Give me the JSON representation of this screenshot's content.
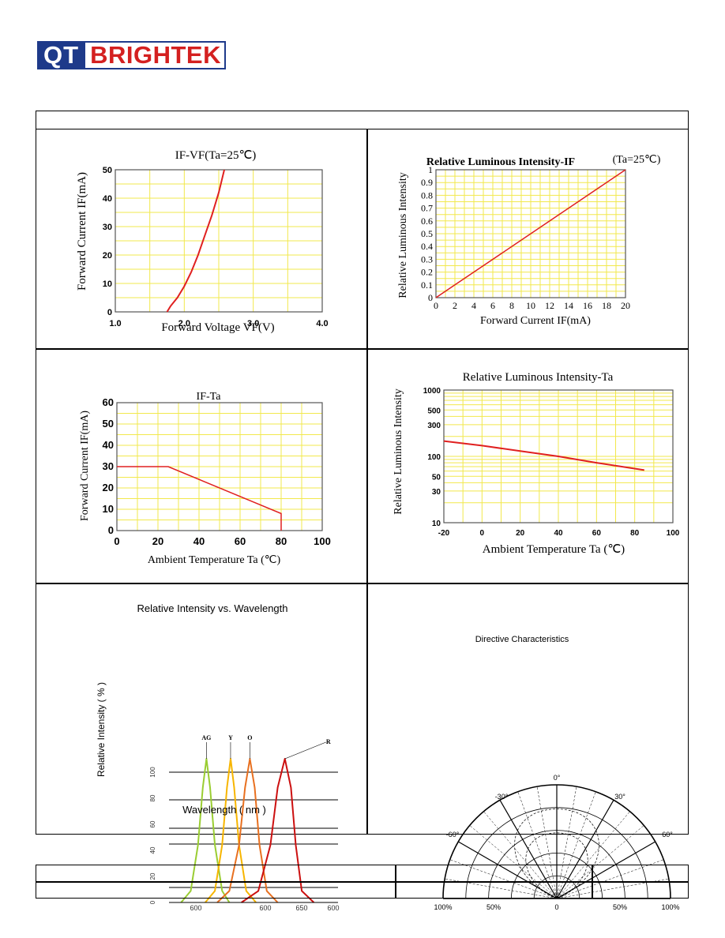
{
  "logo": {
    "part1": "QT",
    "part2": "BRIGHTEK"
  },
  "chart_data": [
    {
      "type": "line",
      "title": "IF-VF(Ta=25℃)",
      "xlabel": "Forward Voltage VF(V)",
      "ylabel": "Forward Current IF(mA)",
      "xlim": [
        1.0,
        4.0
      ],
      "ylim": [
        0,
        50
      ],
      "xticks": [
        "1.0",
        "2.0",
        "3.0",
        "4.0"
      ],
      "yticks": [
        "0",
        "10",
        "20",
        "30",
        "40",
        "50"
      ],
      "series": [
        {
          "x": [
            1.75,
            1.8,
            1.9,
            2.0,
            2.1,
            2.2,
            2.3,
            2.4,
            2.5,
            2.58
          ],
          "y": [
            0,
            2,
            5,
            9,
            14,
            20,
            27,
            34,
            42,
            50
          ]
        }
      ],
      "colors": {
        "grid": "#f2e84c",
        "line": "#e02020"
      }
    },
    {
      "type": "line",
      "title": "Relative Luminous Intensity-IF",
      "subtitle": "(Ta=25℃)",
      "xlabel": "Forward Current IF(mA)",
      "ylabel": "Relative Luminous Intensity",
      "xlim": [
        0,
        20
      ],
      "ylim": [
        0,
        1
      ],
      "xticks": [
        "0",
        "2",
        "4",
        "6",
        "8",
        "10",
        "12",
        "14",
        "16",
        "18",
        "20"
      ],
      "yticks": [
        "0",
        "0.1",
        "0.2",
        "0.3",
        "0.4",
        "0.5",
        "0.6",
        "0.7",
        "0.8",
        "0.9",
        "1"
      ],
      "series": [
        {
          "x": [
            0,
            2,
            5,
            10,
            15,
            20
          ],
          "y": [
            0,
            0.1,
            0.25,
            0.5,
            0.75,
            1.0
          ]
        }
      ],
      "colors": {
        "grid": "#f2e84c",
        "line": "#e02020"
      }
    },
    {
      "type": "line",
      "title": "IF-Ta",
      "xlabel": "Ambient Temperature Ta (℃)",
      "ylabel": "Forward Current IF(mA)",
      "xlim": [
        0,
        100
      ],
      "ylim": [
        0,
        60
      ],
      "xticks": [
        "0",
        "20",
        "40",
        "60",
        "80",
        "100"
      ],
      "yticks": [
        "0",
        "10",
        "20",
        "30",
        "40",
        "50",
        "60"
      ],
      "series": [
        {
          "x": [
            0,
            25,
            80,
            80
          ],
          "y": [
            30,
            30,
            8,
            0
          ]
        }
      ],
      "colors": {
        "grid": "#f2e84c",
        "line": "#e02020"
      }
    },
    {
      "type": "line",
      "title": "Relative Luminous Intensity-Ta",
      "xlabel": "Ambient Temperature Ta (℃)",
      "ylabel": "Relative Luminous Intensity",
      "xlim": [
        -20,
        100
      ],
      "ylim": [
        10,
        1000
      ],
      "yscale": "log",
      "xticks": [
        "-20",
        "0",
        "20",
        "40",
        "60",
        "80",
        "100"
      ],
      "yticks": [
        "10",
        "30",
        "50",
        "100",
        "300",
        "500",
        "1000"
      ],
      "series": [
        {
          "x": [
            -20,
            0,
            20,
            40,
            60,
            85
          ],
          "y": [
            170,
            145,
            120,
            100,
            80,
            62
          ]
        }
      ],
      "colors": {
        "grid": "#f2e84c",
        "line": "#e02020"
      }
    },
    {
      "type": "line",
      "title": "Relative Intensity vs. Wavelength",
      "xlabel": "Wavelength ( nm )",
      "ylabel": "Relative Intensity ( % )",
      "xlim": [
        500,
        700
      ],
      "ylim": [
        0,
        100
      ],
      "xticks": [
        "600",
        "600",
        "650",
        "600"
      ],
      "yticks": [
        "0",
        "20",
        "40",
        "60",
        "80",
        "100"
      ],
      "series": [
        {
          "name": "AG",
          "x": [
            550,
            558,
            564,
            568,
            571,
            574,
            578,
            584,
            590
          ],
          "y": [
            0,
            8,
            40,
            80,
            100,
            80,
            40,
            8,
            0
          ],
          "color": "#9acd32"
        },
        {
          "name": "Y",
          "x": [
            570,
            578,
            584,
            588,
            591,
            594,
            598,
            604,
            612
          ],
          "y": [
            0,
            8,
            40,
            80,
            100,
            80,
            40,
            8,
            0
          ],
          "color": "#f7b500"
        },
        {
          "name": "O",
          "x": [
            580,
            590,
            598,
            603,
            607,
            611,
            615,
            621,
            630
          ],
          "y": [
            0,
            8,
            40,
            80,
            100,
            80,
            40,
            8,
            0
          ],
          "color": "#e87020"
        },
        {
          "name": "R",
          "x": [
            600,
            614,
            624,
            630,
            636,
            641,
            645,
            650,
            660
          ],
          "y": [
            0,
            8,
            40,
            80,
            100,
            80,
            40,
            8,
            0
          ],
          "color": "#cc1010"
        }
      ]
    },
    {
      "type": "diagram",
      "title": "Directive Characteristics",
      "angle_labels": [
        "0°",
        "-30°",
        "30°",
        "-60°",
        "60°"
      ],
      "radial_labels": [
        "100%",
        "50%",
        "0",
        "50%",
        "100%"
      ]
    }
  ]
}
